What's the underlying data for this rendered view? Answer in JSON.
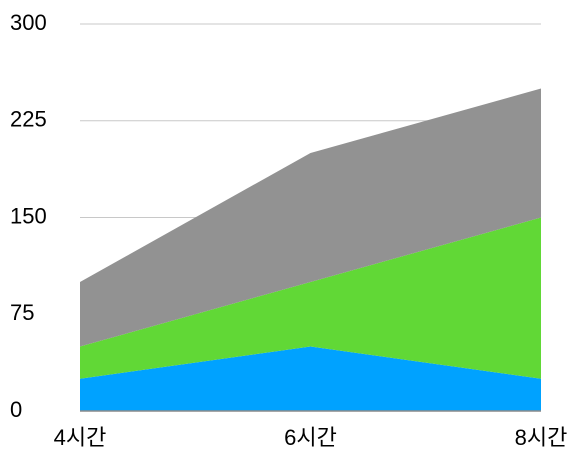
{
  "chart_data": {
    "type": "stacked-area",
    "categories": [
      "4시간",
      "6시간",
      "8시간"
    ],
    "series": [
      {
        "color": "#00a2ff",
        "values": [
          25,
          50,
          25
        ]
      },
      {
        "color": "#61d836",
        "values": [
          25,
          50,
          125
        ]
      },
      {
        "color": "#929292",
        "values": [
          50,
          100,
          100
        ]
      }
    ],
    "ylim": [
      0,
      300
    ],
    "yticks": [
      0,
      75,
      150,
      225,
      300
    ],
    "grid": true
  }
}
